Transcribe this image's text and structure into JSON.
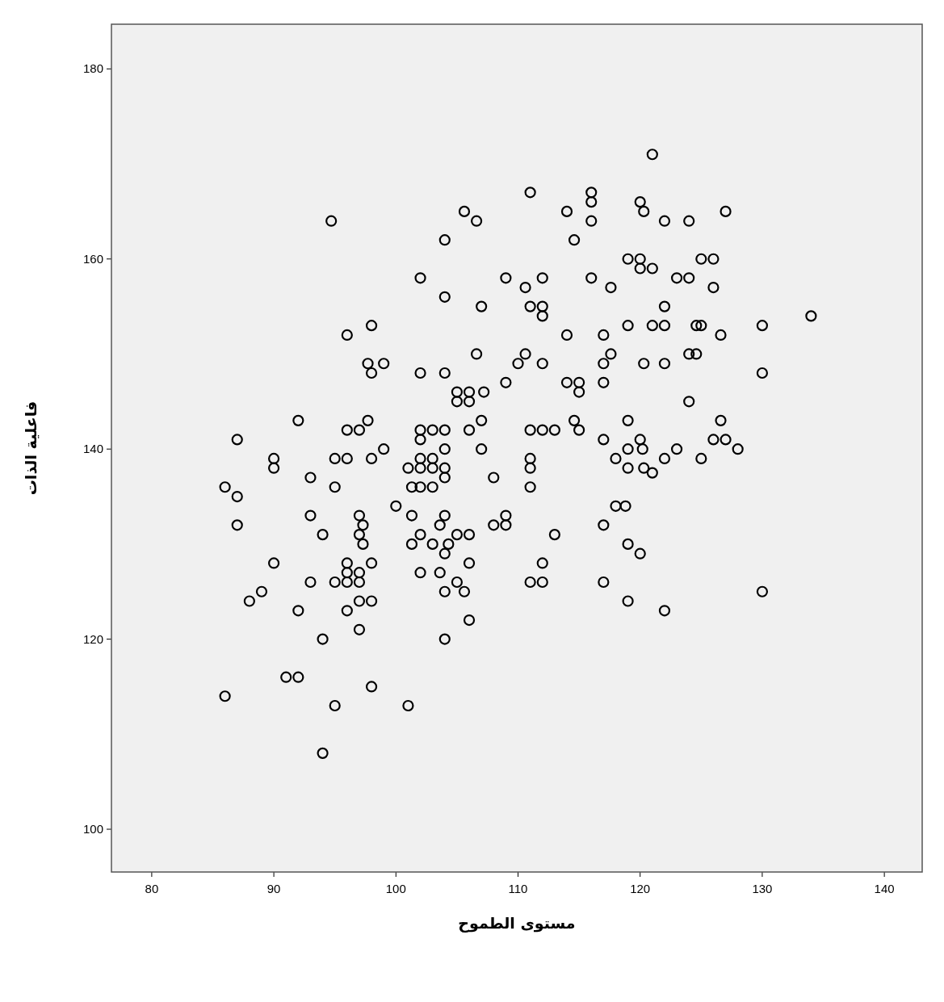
{
  "chart_data": {
    "type": "scatter",
    "xlabel": "مستوى الطموح",
    "ylabel": "فاعلية الذات",
    "xlim": [
      76.7,
      143.1
    ],
    "ylim": [
      95.5,
      184.7
    ],
    "xticks": [
      80,
      90,
      100,
      110,
      120,
      130,
      140
    ],
    "yticks": [
      100,
      120,
      140,
      160,
      180
    ],
    "marker": "circle",
    "grid": false,
    "series": [
      {
        "color": "#000000",
        "x": [
          86,
          86,
          87,
          87,
          87,
          88,
          89,
          90,
          90,
          90,
          91,
          92,
          92,
          92,
          93,
          93,
          93,
          94,
          94,
          94,
          94.7,
          95,
          95,
          95,
          95,
          96,
          96,
          96,
          96,
          96,
          96,
          96,
          97,
          97,
          97,
          97,
          97,
          97,
          97,
          97.3,
          97.3,
          97.7,
          97.7,
          98,
          98,
          98,
          98,
          98,
          98,
          99,
          99,
          100,
          101,
          101,
          101.3,
          101.3,
          101.3,
          102,
          102,
          102,
          102,
          102,
          102,
          102,
          102,
          102,
          103,
          103,
          103,
          103,
          103,
          103.6,
          103.6,
          104,
          104,
          104,
          104,
          104,
          104,
          104,
          104,
          104,
          104,
          104,
          104.3,
          105,
          105,
          105,
          105,
          105.6,
          105.6,
          106,
          106,
          106,
          106,
          106,
          106,
          106.6,
          106.6,
          107,
          107,
          107,
          107.2,
          108,
          108,
          109,
          109,
          109,
          109,
          110,
          110.6,
          110.6,
          111,
          111,
          111,
          111,
          111,
          111,
          111,
          112,
          112,
          112,
          112,
          112,
          112,
          112,
          113,
          113,
          114,
          114,
          114,
          114.6,
          114.6,
          115,
          115,
          115,
          116,
          116,
          116,
          116,
          117,
          117,
          117,
          117,
          117,
          117,
          117.6,
          117.6,
          118,
          118,
          118.8,
          119,
          119,
          119,
          119,
          119,
          119,
          119,
          120,
          120,
          120,
          120,
          120,
          120.2,
          120.3,
          120.3,
          120.3,
          121,
          121,
          121,
          121,
          122,
          122,
          122,
          122,
          122,
          122,
          123,
          123,
          124,
          124,
          124,
          124,
          124.6,
          124.6,
          125,
          125,
          125,
          126,
          126,
          126,
          126.6,
          126.6,
          127,
          127,
          128,
          130,
          130,
          130,
          134
        ],
        "values": [
          114,
          136,
          135,
          141,
          132,
          124,
          125,
          139,
          138,
          128,
          116,
          116,
          123,
          143,
          137,
          133,
          126,
          131,
          120,
          108,
          164,
          136,
          139,
          113,
          126,
          126,
          128,
          127,
          123,
          139,
          142,
          152,
          142,
          133,
          131,
          127,
          126,
          124,
          121,
          132,
          130,
          143,
          149,
          153,
          148,
          139,
          128,
          124,
          115,
          149,
          140,
          134,
          138,
          113,
          136,
          133,
          130,
          142,
          141,
          139,
          138,
          136,
          131,
          127,
          148,
          158,
          138,
          136,
          142,
          130,
          139,
          127,
          132,
          138,
          142,
          140,
          137,
          133,
          129,
          125,
          120,
          148,
          156,
          162,
          130,
          146,
          145,
          131,
          126,
          125,
          165,
          146,
          145,
          142,
          131,
          128,
          122,
          150,
          164,
          143,
          140,
          155,
          146,
          137,
          132,
          132,
          133,
          147,
          158,
          149,
          157,
          150,
          167,
          155,
          142,
          139,
          138,
          136,
          126,
          158,
          155,
          154,
          149,
          142,
          128,
          126,
          131,
          142,
          165,
          152,
          147,
          162,
          143,
          147,
          146,
          142,
          167,
          166,
          164,
          158,
          152,
          149,
          147,
          141,
          132,
          126,
          157,
          150,
          139,
          134,
          134,
          160,
          153,
          143,
          140,
          138,
          130,
          124,
          166,
          160,
          159,
          141,
          129,
          140,
          165,
          149,
          138,
          171,
          159,
          153,
          137.5,
          164,
          155,
          153,
          149,
          139,
          123,
          158,
          140,
          164,
          158,
          150,
          145,
          150,
          153,
          153,
          160,
          139,
          160,
          157,
          141,
          152,
          143,
          165,
          141,
          140,
          153,
          148,
          125,
          154
        ]
      }
    ]
  }
}
